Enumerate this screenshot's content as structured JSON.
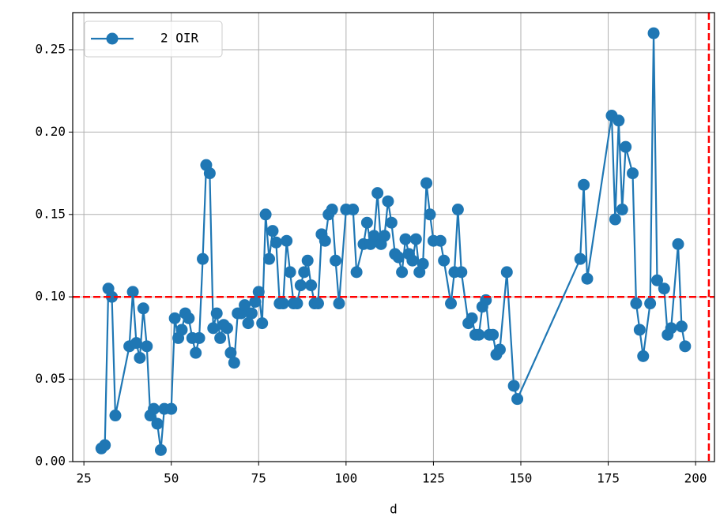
{
  "chart_data": {
    "type": "line",
    "x_label": "d",
    "x": [
      30,
      31,
      32,
      33,
      34,
      38,
      39,
      40,
      41,
      42,
      43,
      44,
      45,
      46,
      47,
      48,
      50,
      51,
      52,
      53,
      54,
      55,
      56,
      57,
      58,
      59,
      60,
      61,
      62,
      63,
      64,
      65,
      66,
      67,
      68,
      69,
      70,
      71,
      72,
      73,
      74,
      75,
      76,
      77,
      78,
      79,
      80,
      81,
      82,
      83,
      84,
      85,
      86,
      87,
      88,
      89,
      90,
      91,
      92,
      93,
      94,
      95,
      96,
      97,
      98,
      100,
      102,
      103,
      105,
      106,
      107,
      108,
      109,
      110,
      111,
      112,
      113,
      114,
      115,
      116,
      117,
      118,
      119,
      120,
      121,
      122,
      123,
      124,
      125,
      127,
      128,
      130,
      131,
      132,
      133,
      135,
      136,
      137,
      138,
      139,
      140,
      141,
      142,
      143,
      144,
      146,
      148,
      149,
      167,
      168,
      169,
      176,
      177,
      178,
      179,
      180,
      182,
      183,
      184,
      185,
      187,
      188,
      189,
      191,
      192,
      193,
      195,
      196,
      197
    ],
    "series": [
      {
        "name": "2 OIR",
        "color": "#1f77b4",
        "values": [
          0.008,
          0.01,
          0.105,
          0.1,
          0.028,
          0.07,
          0.103,
          0.072,
          0.063,
          0.093,
          0.07,
          0.028,
          0.032,
          0.023,
          0.007,
          0.032,
          0.032,
          0.087,
          0.075,
          0.08,
          0.09,
          0.087,
          0.075,
          0.066,
          0.075,
          0.123,
          0.18,
          0.175,
          0.081,
          0.09,
          0.075,
          0.083,
          0.081,
          0.066,
          0.06,
          0.09,
          0.09,
          0.095,
          0.084,
          0.09,
          0.097,
          0.103,
          0.084,
          0.15,
          0.123,
          0.14,
          0.133,
          0.096,
          0.096,
          0.134,
          0.115,
          0.096,
          0.096,
          0.107,
          0.115,
          0.122,
          0.107,
          0.096,
          0.096,
          0.138,
          0.134,
          0.15,
          0.153,
          0.122,
          0.096,
          0.153,
          0.153,
          0.115,
          0.132,
          0.145,
          0.132,
          0.137,
          0.163,
          0.132,
          0.137,
          0.158,
          0.145,
          0.126,
          0.124,
          0.115,
          0.135,
          0.126,
          0.122,
          0.135,
          0.115,
          0.12,
          0.169,
          0.15,
          0.134,
          0.134,
          0.122,
          0.096,
          0.115,
          0.153,
          0.115,
          0.084,
          0.087,
          0.077,
          0.077,
          0.094,
          0.098,
          0.077,
          0.077,
          0.065,
          0.068,
          0.115,
          0.046,
          0.038,
          0.123,
          0.168,
          0.111,
          0.21,
          0.147,
          0.207,
          0.153,
          0.191,
          0.175,
          0.096,
          0.08,
          0.064,
          0.096,
          0.26,
          0.11,
          0.105,
          0.077,
          0.081,
          0.132,
          0.082,
          0.07
        ]
      }
    ],
    "xlim": [
      21.8,
      205.4
    ],
    "ylim": [
      0,
      0.2725
    ],
    "xticks": [
      25,
      50,
      75,
      100,
      125,
      150,
      175,
      200
    ],
    "yticks": [
      {
        "value": 0,
        "label": "0.00"
      },
      {
        "value": 0.05,
        "label": "0.05"
      },
      {
        "value": 0.1,
        "label": "0.10"
      },
      {
        "value": 0.15,
        "label": "0.15"
      },
      {
        "value": 0.2,
        "label": "0.20"
      },
      {
        "value": 0.25,
        "label": "0.25"
      }
    ],
    "grid": true,
    "legend": "upper left",
    "hline": 0.1,
    "vline": 203.8,
    "ref_color": "#ff0000"
  }
}
